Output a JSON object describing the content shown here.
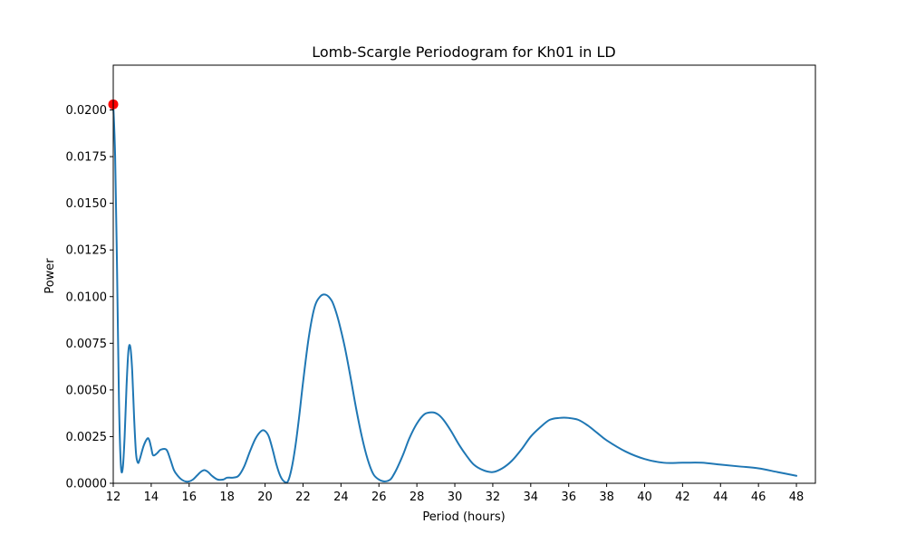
{
  "chart_data": {
    "type": "line",
    "title": "Lomb-Scargle Periodogram for Kh01 in LD",
    "xlabel": "Period (hours)",
    "ylabel": "Power",
    "xlim": [
      12,
      49
    ],
    "ylim": [
      0,
      0.0224
    ],
    "x_ticks": [
      12,
      14,
      16,
      18,
      20,
      22,
      24,
      26,
      28,
      30,
      32,
      34,
      36,
      38,
      40,
      42,
      44,
      46,
      48
    ],
    "x_tick_labels": [
      "12",
      "14",
      "16",
      "18",
      "20",
      "22",
      "24",
      "26",
      "28",
      "30",
      "32",
      "34",
      "36",
      "38",
      "40",
      "42",
      "44",
      "46",
      "48"
    ],
    "y_ticks": [
      0,
      0.0025,
      0.005,
      0.0075,
      0.01,
      0.0125,
      0.015,
      0.0175,
      0.02
    ],
    "y_tick_labels": [
      "0.0000",
      "0.0025",
      "0.0050",
      "0.0075",
      "0.0100",
      "0.0125",
      "0.0150",
      "0.0175",
      "0.0200"
    ],
    "grid": false,
    "colors": {
      "line": "#1f77b4",
      "peak_marker": "#ff0000"
    },
    "series": [
      {
        "x": [
          12.0,
          12.1,
          12.2,
          12.3,
          12.4,
          12.5,
          12.6,
          12.7,
          12.8,
          12.9,
          13.0,
          13.1,
          13.2,
          13.3,
          13.4,
          13.6,
          13.8,
          13.9,
          14.0,
          14.1,
          14.3,
          14.5,
          14.8,
          15.0,
          15.2,
          15.4,
          15.6,
          15.8,
          16.0,
          16.2,
          16.4,
          16.6,
          16.8,
          17.0,
          17.2,
          17.5,
          17.8,
          18.0,
          18.3,
          18.6,
          18.9,
          19.2,
          19.5,
          19.8,
          20.0,
          20.2,
          20.4,
          20.6,
          20.8,
          21.0,
          21.2,
          21.4,
          21.6,
          21.8,
          22.0,
          22.3,
          22.6,
          22.9,
          23.2,
          23.5,
          23.7,
          23.9,
          24.2,
          24.5,
          24.8,
          25.1,
          25.4,
          25.7,
          26.0,
          26.3,
          26.6,
          26.8,
          27.0,
          27.3,
          27.6,
          28.0,
          28.4,
          28.8,
          29.1,
          29.4,
          29.8,
          30.2,
          30.6,
          31.0,
          31.5,
          32.0,
          32.5,
          33.0,
          33.5,
          34.0,
          34.5,
          35.0,
          35.5,
          36.0,
          36.5,
          37.0,
          37.5,
          38.0,
          39.0,
          40.0,
          41.0,
          42.0,
          43.0,
          44.0,
          45.0,
          46.0,
          47.0,
          48.0
        ],
        "values": [
          0.0203,
          0.0175,
          0.0115,
          0.0045,
          0.001,
          0.0008,
          0.0025,
          0.0052,
          0.0071,
          0.0073,
          0.006,
          0.0035,
          0.0016,
          0.0011,
          0.0013,
          0.002,
          0.0024,
          0.0023,
          0.0019,
          0.0015,
          0.0016,
          0.0018,
          0.0018,
          0.0013,
          0.0007,
          0.0004,
          0.0002,
          0.0001,
          0.0001,
          0.0002,
          0.0004,
          0.0006,
          0.0007,
          0.0006,
          0.0004,
          0.0002,
          0.0002,
          0.0003,
          0.0003,
          0.0004,
          0.0009,
          0.0017,
          0.0024,
          0.0028,
          0.0028,
          0.0025,
          0.0018,
          0.001,
          0.0004,
          0.0001,
          0.0001,
          0.0008,
          0.002,
          0.0036,
          0.0054,
          0.0078,
          0.0094,
          0.01,
          0.0101,
          0.0098,
          0.0093,
          0.0086,
          0.0073,
          0.0057,
          0.004,
          0.0025,
          0.0013,
          0.0005,
          0.0002,
          0.0001,
          0.0002,
          0.0005,
          0.0009,
          0.0016,
          0.0024,
          0.0032,
          0.0037,
          0.0038,
          0.0037,
          0.0034,
          0.0028,
          0.0021,
          0.0015,
          0.001,
          0.0007,
          0.0006,
          0.0008,
          0.0012,
          0.0018,
          0.0025,
          0.003,
          0.0034,
          0.0035,
          0.0035,
          0.0034,
          0.0031,
          0.0027,
          0.0023,
          0.0017,
          0.0013,
          0.0011,
          0.0011,
          0.0011,
          0.001,
          0.0009,
          0.0008,
          0.0006,
          0.0004
        ]
      }
    ],
    "peak": {
      "x": 12.0,
      "y": 0.0203
    }
  }
}
